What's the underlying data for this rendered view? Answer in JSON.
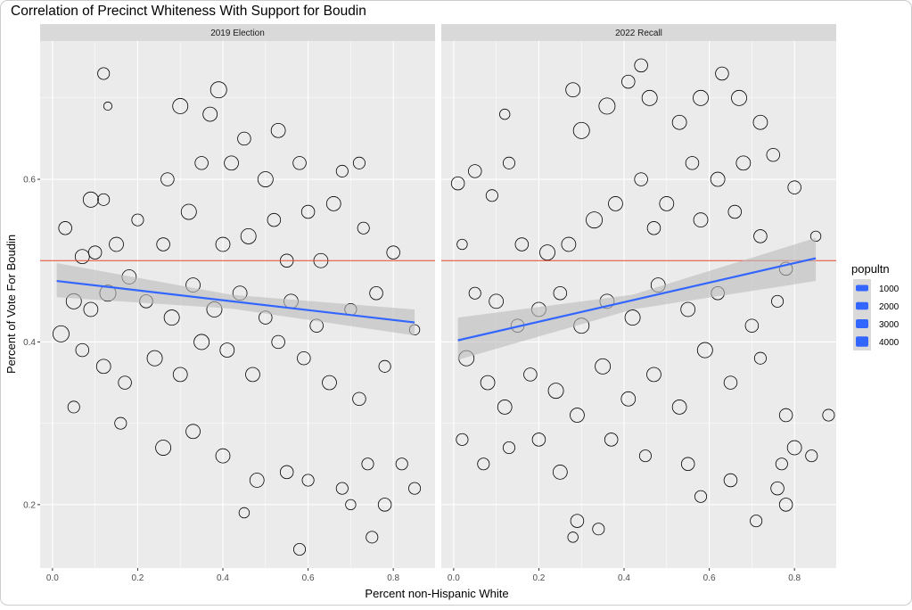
{
  "chart_data": {
    "type": "scatter",
    "title": "Correlation of Precinct Whiteness With Support for Boudin",
    "xlabel": "Percent non-Hispanic White",
    "ylabel": "Percent of Vote For Boudin",
    "xlim": [
      -0.029,
      0.898
    ],
    "ylim": [
      0.122,
      0.77
    ],
    "x_ticks": [
      0.0,
      0.2,
      0.4,
      0.6,
      0.8
    ],
    "x_tick_labels": [
      "0.0",
      "0.2",
      "0.4",
      "0.6",
      "0.8"
    ],
    "y_ticks": [
      0.2,
      0.4,
      0.6
    ],
    "y_tick_labels": [
      "0.2",
      "0.4",
      "0.6"
    ],
    "grid": true,
    "reference_line_y": 0.5,
    "colors": {
      "points": "#000000",
      "fit": "#3366FF",
      "ci": "#BBBBBB",
      "reference": "#E8452F",
      "panel": "#EBEBEB",
      "strip": "#D9D9D9"
    },
    "legend": {
      "title": "popultn",
      "placement": "right",
      "entries": [
        "1000",
        "2000",
        "3000",
        "4000"
      ],
      "values": [
        1000,
        2000,
        3000,
        4000
      ]
    },
    "panels": [
      {
        "label": "2019 Election",
        "fit": [
          [
            0.01,
            0.475
          ],
          [
            0.85,
            0.424
          ]
        ],
        "ci": [
          [
            0.01,
            0.455,
            0.497
          ],
          [
            0.42,
            0.441,
            0.458
          ],
          [
            0.85,
            0.408,
            0.44
          ]
        ],
        "points": [
          [
            0.12,
            0.73,
            1500
          ],
          [
            0.13,
            0.69,
            500
          ],
          [
            0.39,
            0.71,
            3500
          ],
          [
            0.3,
            0.69,
            3000
          ],
          [
            0.37,
            0.68,
            2500
          ],
          [
            0.53,
            0.66,
            2500
          ],
          [
            0.45,
            0.65,
            2000
          ],
          [
            0.58,
            0.62,
            2000
          ],
          [
            0.68,
            0.61,
            1500
          ],
          [
            0.72,
            0.62,
            1500
          ],
          [
            0.09,
            0.575,
            3000
          ],
          [
            0.12,
            0.575,
            1500
          ],
          [
            0.03,
            0.54,
            2000
          ],
          [
            0.07,
            0.505,
            2500
          ],
          [
            0.1,
            0.51,
            2000
          ],
          [
            0.15,
            0.52,
            2500
          ],
          [
            0.2,
            0.55,
            1500
          ],
          [
            0.26,
            0.52,
            2000
          ],
          [
            0.32,
            0.56,
            3000
          ],
          [
            0.4,
            0.52,
            2500
          ],
          [
            0.46,
            0.53,
            3000
          ],
          [
            0.52,
            0.55,
            2000
          ],
          [
            0.6,
            0.56,
            2000
          ],
          [
            0.66,
            0.57,
            2500
          ],
          [
            0.73,
            0.54,
            1500
          ],
          [
            0.8,
            0.51,
            2000
          ],
          [
            0.05,
            0.45,
            3000
          ],
          [
            0.09,
            0.44,
            2500
          ],
          [
            0.13,
            0.46,
            3500
          ],
          [
            0.18,
            0.48,
            2500
          ],
          [
            0.22,
            0.45,
            2000
          ],
          [
            0.28,
            0.43,
            3000
          ],
          [
            0.33,
            0.47,
            2500
          ],
          [
            0.38,
            0.44,
            3000
          ],
          [
            0.44,
            0.46,
            2500
          ],
          [
            0.5,
            0.43,
            2000
          ],
          [
            0.56,
            0.45,
            2500
          ],
          [
            0.62,
            0.42,
            2000
          ],
          [
            0.7,
            0.44,
            1500
          ],
          [
            0.76,
            0.46,
            2000
          ],
          [
            0.85,
            0.415,
            1000
          ],
          [
            0.02,
            0.41,
            3500
          ],
          [
            0.07,
            0.39,
            2000
          ],
          [
            0.12,
            0.37,
            2500
          ],
          [
            0.17,
            0.35,
            2000
          ],
          [
            0.24,
            0.38,
            3000
          ],
          [
            0.3,
            0.36,
            2500
          ],
          [
            0.35,
            0.4,
            3000
          ],
          [
            0.41,
            0.39,
            2500
          ],
          [
            0.47,
            0.36,
            2500
          ],
          [
            0.53,
            0.4,
            2000
          ],
          [
            0.59,
            0.38,
            2000
          ],
          [
            0.65,
            0.35,
            2500
          ],
          [
            0.72,
            0.33,
            2000
          ],
          [
            0.78,
            0.37,
            1500
          ],
          [
            0.05,
            0.32,
            1500
          ],
          [
            0.16,
            0.3,
            1500
          ],
          [
            0.26,
            0.27,
            3000
          ],
          [
            0.33,
            0.29,
            2500
          ],
          [
            0.4,
            0.26,
            2500
          ],
          [
            0.48,
            0.23,
            2500
          ],
          [
            0.55,
            0.24,
            2000
          ],
          [
            0.6,
            0.23,
            1500
          ],
          [
            0.45,
            0.19,
            1000
          ],
          [
            0.58,
            0.145,
            1500
          ],
          [
            0.68,
            0.22,
            1500
          ],
          [
            0.74,
            0.25,
            1500
          ],
          [
            0.78,
            0.2,
            2000
          ],
          [
            0.82,
            0.25,
            1500
          ],
          [
            0.85,
            0.22,
            1500
          ],
          [
            0.75,
            0.16,
            1500
          ],
          [
            0.7,
            0.2,
            1000
          ],
          [
            0.42,
            0.62,
            2500
          ],
          [
            0.5,
            0.6,
            3000
          ],
          [
            0.27,
            0.6,
            2000
          ],
          [
            0.35,
            0.62,
            2000
          ],
          [
            0.63,
            0.5,
            2500
          ],
          [
            0.55,
            0.5,
            2000
          ]
        ]
      },
      {
        "label": "2022 Recall",
        "fit": [
          [
            0.01,
            0.402
          ],
          [
            0.85,
            0.503
          ]
        ],
        "ci": [
          [
            0.01,
            0.378,
            0.43
          ],
          [
            0.42,
            0.44,
            0.458
          ],
          [
            0.85,
            0.475,
            0.528
          ]
        ],
        "points": [
          [
            0.01,
            0.595,
            2000
          ],
          [
            0.05,
            0.61,
            2000
          ],
          [
            0.02,
            0.52,
            1000
          ],
          [
            0.09,
            0.58,
            1500
          ],
          [
            0.12,
            0.68,
            1000
          ],
          [
            0.13,
            0.62,
            1500
          ],
          [
            0.16,
            0.52,
            2000
          ],
          [
            0.22,
            0.51,
            3000
          ],
          [
            0.28,
            0.71,
            2500
          ],
          [
            0.3,
            0.66,
            3500
          ],
          [
            0.36,
            0.69,
            3500
          ],
          [
            0.41,
            0.72,
            2000
          ],
          [
            0.44,
            0.74,
            2000
          ],
          [
            0.46,
            0.7,
            3000
          ],
          [
            0.53,
            0.67,
            2500
          ],
          [
            0.58,
            0.7,
            3000
          ],
          [
            0.63,
            0.73,
            2000
          ],
          [
            0.67,
            0.7,
            3000
          ],
          [
            0.72,
            0.67,
            2500
          ],
          [
            0.75,
            0.63,
            2000
          ],
          [
            0.8,
            0.59,
            2000
          ],
          [
            0.68,
            0.62,
            2500
          ],
          [
            0.62,
            0.6,
            2500
          ],
          [
            0.56,
            0.62,
            2000
          ],
          [
            0.5,
            0.57,
            2500
          ],
          [
            0.44,
            0.6,
            2000
          ],
          [
            0.38,
            0.57,
            2500
          ],
          [
            0.33,
            0.55,
            3500
          ],
          [
            0.27,
            0.52,
            2500
          ],
          [
            0.47,
            0.54,
            2000
          ],
          [
            0.58,
            0.55,
            2500
          ],
          [
            0.66,
            0.56,
            2000
          ],
          [
            0.72,
            0.53,
            2000
          ],
          [
            0.78,
            0.49,
            2000
          ],
          [
            0.85,
            0.53,
            1000
          ],
          [
            0.05,
            0.46,
            1500
          ],
          [
            0.1,
            0.45,
            2500
          ],
          [
            0.15,
            0.42,
            2000
          ],
          [
            0.2,
            0.44,
            2500
          ],
          [
            0.25,
            0.46,
            2000
          ],
          [
            0.3,
            0.42,
            3000
          ],
          [
            0.36,
            0.45,
            2500
          ],
          [
            0.42,
            0.43,
            3000
          ],
          [
            0.48,
            0.47,
            2500
          ],
          [
            0.55,
            0.44,
            2500
          ],
          [
            0.62,
            0.46,
            2000
          ],
          [
            0.7,
            0.42,
            2000
          ],
          [
            0.76,
            0.45,
            1500
          ],
          [
            0.03,
            0.38,
            3000
          ],
          [
            0.08,
            0.35,
            2500
          ],
          [
            0.12,
            0.32,
            2500
          ],
          [
            0.18,
            0.36,
            2000
          ],
          [
            0.24,
            0.34,
            3000
          ],
          [
            0.29,
            0.31,
            2500
          ],
          [
            0.35,
            0.37,
            3000
          ],
          [
            0.41,
            0.33,
            2500
          ],
          [
            0.47,
            0.36,
            2500
          ],
          [
            0.53,
            0.32,
            2500
          ],
          [
            0.59,
            0.39,
            3000
          ],
          [
            0.65,
            0.35,
            2000
          ],
          [
            0.72,
            0.38,
            1500
          ],
          [
            0.78,
            0.31,
            2000
          ],
          [
            0.02,
            0.28,
            1500
          ],
          [
            0.07,
            0.25,
            1500
          ],
          [
            0.13,
            0.27,
            1500
          ],
          [
            0.2,
            0.28,
            2000
          ],
          [
            0.25,
            0.24,
            2500
          ],
          [
            0.29,
            0.18,
            2000
          ],
          [
            0.34,
            0.17,
            1500
          ],
          [
            0.37,
            0.28,
            2000
          ],
          [
            0.45,
            0.26,
            1500
          ],
          [
            0.55,
            0.25,
            2000
          ],
          [
            0.58,
            0.21,
            1500
          ],
          [
            0.65,
            0.23,
            2000
          ],
          [
            0.71,
            0.18,
            1500
          ],
          [
            0.76,
            0.22,
            2000
          ],
          [
            0.8,
            0.27,
            2500
          ],
          [
            0.78,
            0.2,
            2000
          ],
          [
            0.84,
            0.26,
            1500
          ],
          [
            0.88,
            0.31,
            1500
          ],
          [
            0.77,
            0.25,
            1500
          ],
          [
            0.28,
            0.16,
            1000
          ]
        ]
      }
    ]
  }
}
